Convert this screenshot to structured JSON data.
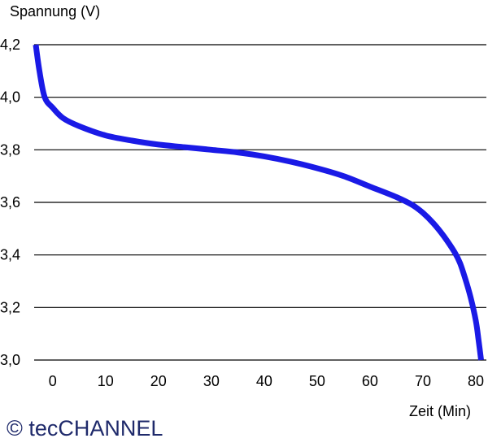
{
  "chart_data": {
    "type": "line",
    "title": "",
    "ylabel": "Spannung (V)",
    "xlabel": "Zeit (Min)",
    "xlim": [
      -3.5,
      82
    ],
    "ylim": [
      3.0,
      4.2
    ],
    "yticks": [
      4.2,
      4.0,
      3.8,
      3.6,
      3.4,
      3.2,
      3.0
    ],
    "ytick_labels": [
      "4,2",
      "4,0",
      "3,8",
      "3,6",
      "3,4",
      "3,2",
      "3,0"
    ],
    "xticks": [
      0,
      10,
      20,
      30,
      40,
      50,
      60,
      70,
      80
    ],
    "xtick_labels": [
      "0",
      "10",
      "20",
      "30",
      "40",
      "50",
      "60",
      "70",
      "80"
    ],
    "grid": "horizontal",
    "series": [
      {
        "color": "#1a1ae6",
        "x": [
          -3.2,
          -2.5,
          -1.5,
          0,
          2,
          5,
          10,
          15,
          20,
          25,
          30,
          35,
          40,
          45,
          50,
          55,
          60,
          65,
          68,
          70,
          72,
          74,
          76,
          77,
          78,
          79,
          80,
          80.5,
          81
        ],
        "y": [
          4.2,
          4.1,
          4.0,
          3.96,
          3.92,
          3.89,
          3.855,
          3.835,
          3.82,
          3.81,
          3.8,
          3.79,
          3.775,
          3.755,
          3.73,
          3.7,
          3.66,
          3.62,
          3.59,
          3.56,
          3.52,
          3.47,
          3.41,
          3.37,
          3.31,
          3.24,
          3.15,
          3.08,
          3.0
        ]
      }
    ]
  },
  "copyright": "© tecCHANNEL"
}
